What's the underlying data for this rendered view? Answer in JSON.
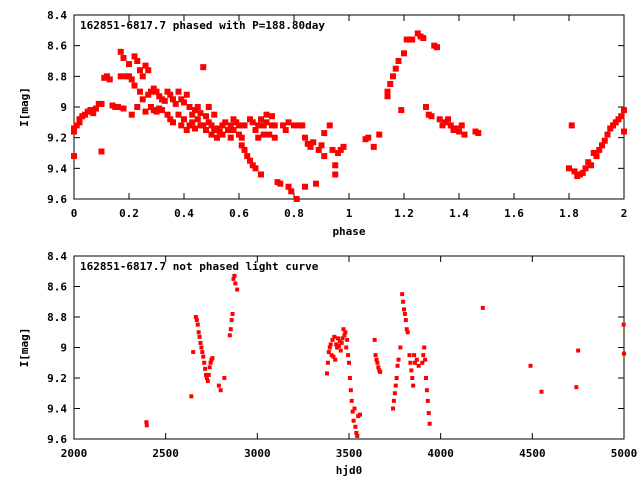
{
  "chart_data": [
    {
      "type": "scatter",
      "title": "162851-6817.7 phased with P=188.80day",
      "xlabel": "phase",
      "ylabel": "I[mag]",
      "xlim": [
        0,
        2
      ],
      "ylim": [
        9.6,
        8.4
      ],
      "y_inverted": true,
      "grid": false,
      "marker_color": "#ff0000",
      "marker": "filled-square",
      "x_ticks": [
        0,
        0.2,
        0.4,
        0.6,
        0.8,
        1,
        1.2,
        1.4,
        1.6,
        1.8,
        2
      ],
      "x_tick_labels": [
        "0",
        "0.2",
        "0.4",
        "0.6",
        "0.8",
        "1",
        "1.2",
        "1.4",
        "1.6",
        "1.8",
        "2"
      ],
      "y_ticks": [
        8.4,
        8.6,
        8.8,
        9,
        9.2,
        9.4,
        9.6
      ],
      "y_tick_labels": [
        "8.4",
        "8.6",
        "8.8",
        "9",
        "9.2",
        "9.4",
        "9.6"
      ],
      "points": [
        [
          0.0,
          9.16
        ],
        [
          0.0,
          9.14
        ],
        [
          0.0,
          9.32
        ],
        [
          0.01,
          9.12
        ],
        [
          0.02,
          9.08
        ],
        [
          0.02,
          9.1
        ],
        [
          0.03,
          9.06
        ],
        [
          0.04,
          9.05
        ],
        [
          0.05,
          9.03
        ],
        [
          0.06,
          9.02
        ],
        [
          0.07,
          9.04
        ],
        [
          0.08,
          9.01
        ],
        [
          0.09,
          8.98
        ],
        [
          0.1,
          8.98
        ],
        [
          0.1,
          9.29
        ],
        [
          0.11,
          8.81
        ],
        [
          0.12,
          8.8
        ],
        [
          0.13,
          8.82
        ],
        [
          0.14,
          8.99
        ],
        [
          0.15,
          9.0
        ],
        [
          0.16,
          9.0
        ],
        [
          0.17,
          8.8
        ],
        [
          0.17,
          8.64
        ],
        [
          0.18,
          8.68
        ],
        [
          0.18,
          9.01
        ],
        [
          0.19,
          8.8
        ],
        [
          0.2,
          8.72
        ],
        [
          0.2,
          8.8
        ],
        [
          0.21,
          8.82
        ],
        [
          0.21,
          9.05
        ],
        [
          0.22,
          8.67
        ],
        [
          0.22,
          8.86
        ],
        [
          0.23,
          8.7
        ],
        [
          0.23,
          9.0
        ],
        [
          0.24,
          8.76
        ],
        [
          0.24,
          8.9
        ],
        [
          0.25,
          8.8
        ],
        [
          0.25,
          8.95
        ],
        [
          0.26,
          8.73
        ],
        [
          0.26,
          9.03
        ],
        [
          0.27,
          8.76
        ],
        [
          0.27,
          8.92
        ],
        [
          0.28,
          8.9
        ],
        [
          0.28,
          9.0
        ],
        [
          0.29,
          8.88
        ],
        [
          0.29,
          9.02
        ],
        [
          0.3,
          8.9
        ],
        [
          0.3,
          9.03
        ],
        [
          0.31,
          8.93
        ],
        [
          0.31,
          9.01
        ],
        [
          0.32,
          8.95
        ],
        [
          0.32,
          9.02
        ],
        [
          0.33,
          8.96
        ],
        [
          0.34,
          8.9
        ],
        [
          0.34,
          9.05
        ],
        [
          0.35,
          8.92
        ],
        [
          0.35,
          9.08
        ],
        [
          0.36,
          8.95
        ],
        [
          0.36,
          9.1
        ],
        [
          0.37,
          8.98
        ],
        [
          0.38,
          8.9
        ],
        [
          0.38,
          9.05
        ],
        [
          0.39,
          8.95
        ],
        [
          0.39,
          9.12
        ],
        [
          0.4,
          8.97
        ],
        [
          0.4,
          9.08
        ],
        [
          0.41,
          8.92
        ],
        [
          0.41,
          9.15
        ],
        [
          0.42,
          9.0
        ],
        [
          0.42,
          9.12
        ],
        [
          0.43,
          9.05
        ],
        [
          0.43,
          9.1
        ],
        [
          0.44,
          9.02
        ],
        [
          0.44,
          9.14
        ],
        [
          0.45,
          9.0
        ],
        [
          0.45,
          9.08
        ],
        [
          0.46,
          9.04
        ],
        [
          0.46,
          9.12
        ],
        [
          0.47,
          8.74
        ],
        [
          0.47,
          9.12
        ],
        [
          0.48,
          9.06
        ],
        [
          0.48,
          9.15
        ],
        [
          0.49,
          9.1
        ],
        [
          0.49,
          9.0
        ],
        [
          0.5,
          9.12
        ],
        [
          0.5,
          9.18
        ],
        [
          0.51,
          9.15
        ],
        [
          0.51,
          9.05
        ],
        [
          0.52,
          9.14
        ],
        [
          0.52,
          9.2
        ],
        [
          0.53,
          9.16
        ],
        [
          0.54,
          9.18
        ],
        [
          0.54,
          9.12
        ],
        [
          0.55,
          9.1
        ],
        [
          0.56,
          9.15
        ],
        [
          0.57,
          9.12
        ],
        [
          0.57,
          9.2
        ],
        [
          0.58,
          9.08
        ],
        [
          0.58,
          9.15
        ],
        [
          0.59,
          9.1
        ],
        [
          0.6,
          9.12
        ],
        [
          0.6,
          9.18
        ],
        [
          0.61,
          9.2
        ],
        [
          0.61,
          9.25
        ],
        [
          0.62,
          9.28
        ],
        [
          0.62,
          9.12
        ],
        [
          0.63,
          9.32
        ],
        [
          0.64,
          9.35
        ],
        [
          0.64,
          9.08
        ],
        [
          0.65,
          9.1
        ],
        [
          0.65,
          9.38
        ],
        [
          0.66,
          9.15
        ],
        [
          0.66,
          9.4
        ],
        [
          0.67,
          9.12
        ],
        [
          0.67,
          9.2
        ],
        [
          0.68,
          9.08
        ],
        [
          0.68,
          9.44
        ],
        [
          0.69,
          9.12
        ],
        [
          0.69,
          9.18
        ],
        [
          0.7,
          9.05
        ],
        [
          0.7,
          9.1
        ],
        [
          0.71,
          9.18
        ],
        [
          0.72,
          9.06
        ],
        [
          0.72,
          9.12
        ],
        [
          0.73,
          9.12
        ],
        [
          0.73,
          9.2
        ],
        [
          0.74,
          9.49
        ],
        [
          0.75,
          9.5
        ],
        [
          0.76,
          9.12
        ],
        [
          0.77,
          9.15
        ],
        [
          0.78,
          9.1
        ],
        [
          0.78,
          9.52
        ],
        [
          0.79,
          9.55
        ],
        [
          0.8,
          9.12
        ],
        [
          0.81,
          9.6
        ],
        [
          0.82,
          9.12
        ],
        [
          0.83,
          9.12
        ],
        [
          0.84,
          9.2
        ],
        [
          0.84,
          9.52
        ],
        [
          0.85,
          9.24
        ],
        [
          0.86,
          9.26
        ],
        [
          0.87,
          9.23
        ],
        [
          0.88,
          9.5
        ],
        [
          0.89,
          9.28
        ],
        [
          0.9,
          9.25
        ],
        [
          0.91,
          9.32
        ],
        [
          0.91,
          9.17
        ],
        [
          0.93,
          9.12
        ],
        [
          0.94,
          9.28
        ],
        [
          0.95,
          9.38
        ],
        [
          0.95,
          9.44
        ],
        [
          0.96,
          9.3
        ],
        [
          0.97,
          9.28
        ],
        [
          0.98,
          9.26
        ],
        [
          1.06,
          9.21
        ],
        [
          1.07,
          9.2
        ],
        [
          1.09,
          9.26
        ],
        [
          1.11,
          9.18
        ],
        [
          1.14,
          8.93
        ],
        [
          1.14,
          8.9
        ],
        [
          1.15,
          8.85
        ],
        [
          1.16,
          8.8
        ],
        [
          1.17,
          8.75
        ],
        [
          1.18,
          8.7
        ],
        [
          1.19,
          9.02
        ],
        [
          1.2,
          8.65
        ],
        [
          1.21,
          8.56
        ],
        [
          1.22,
          8.56
        ],
        [
          1.23,
          8.56
        ],
        [
          1.25,
          8.52
        ],
        [
          1.26,
          8.54
        ],
        [
          1.27,
          8.55
        ],
        [
          1.28,
          9.0
        ],
        [
          1.29,
          9.05
        ],
        [
          1.3,
          9.06
        ],
        [
          1.31,
          8.6
        ],
        [
          1.32,
          8.61
        ],
        [
          1.33,
          9.08
        ],
        [
          1.34,
          9.12
        ],
        [
          1.35,
          9.1
        ],
        [
          1.36,
          9.08
        ],
        [
          1.37,
          9.12
        ],
        [
          1.38,
          9.15
        ],
        [
          1.39,
          9.14
        ],
        [
          1.4,
          9.16
        ],
        [
          1.41,
          9.12
        ],
        [
          1.42,
          9.18
        ],
        [
          1.46,
          9.16
        ],
        [
          1.47,
          9.17
        ],
        [
          1.8,
          9.4
        ],
        [
          1.81,
          9.12
        ],
        [
          1.82,
          9.42
        ],
        [
          1.83,
          9.45
        ],
        [
          1.84,
          9.44
        ],
        [
          1.85,
          9.43
        ],
        [
          1.86,
          9.4
        ],
        [
          1.87,
          9.36
        ],
        [
          1.88,
          9.38
        ],
        [
          1.89,
          9.3
        ],
        [
          1.9,
          9.32
        ],
        [
          1.91,
          9.28
        ],
        [
          1.92,
          9.25
        ],
        [
          1.93,
          9.22
        ],
        [
          1.94,
          9.18
        ],
        [
          1.95,
          9.14
        ],
        [
          1.96,
          9.12
        ],
        [
          1.97,
          9.1
        ],
        [
          1.98,
          9.08
        ],
        [
          1.99,
          9.06
        ],
        [
          2.0,
          9.02
        ],
        [
          2.0,
          9.16
        ]
      ]
    },
    {
      "type": "scatter",
      "title": "162851-6817.7 not phased light curve",
      "xlabel": "hjd0",
      "ylabel": "I[mag]",
      "xlim": [
        2000,
        5000
      ],
      "ylim": [
        9.6,
        8.4
      ],
      "y_inverted": true,
      "grid": false,
      "marker_color": "#ff0000",
      "marker": "filled-square",
      "x_ticks": [
        2000,
        2500,
        3000,
        3500,
        4000,
        4500,
        5000
      ],
      "x_tick_labels": [
        "2000",
        "2500",
        "3000",
        "3500",
        "4000",
        "4500",
        "5000"
      ],
      "y_ticks": [
        8.4,
        8.6,
        8.8,
        9,
        9.2,
        9.4,
        9.6
      ],
      "y_tick_labels": [
        "8.4",
        "8.6",
        "8.8",
        "9",
        "9.2",
        "9.4",
        "9.6"
      ],
      "points": [
        [
          2395,
          9.49
        ],
        [
          2397,
          9.51
        ],
        [
          2640,
          9.32
        ],
        [
          2650,
          9.03
        ],
        [
          2665,
          8.8
        ],
        [
          2670,
          8.82
        ],
        [
          2675,
          8.85
        ],
        [
          2680,
          8.9
        ],
        [
          2685,
          8.93
        ],
        [
          2690,
          8.97
        ],
        [
          2695,
          9.0
        ],
        [
          2700,
          9.03
        ],
        [
          2705,
          9.06
        ],
        [
          2710,
          9.1
        ],
        [
          2715,
          9.14
        ],
        [
          2720,
          9.18
        ],
        [
          2725,
          9.2
        ],
        [
          2730,
          9.22
        ],
        [
          2735,
          9.18
        ],
        [
          2740,
          9.13
        ],
        [
          2745,
          9.1
        ],
        [
          2750,
          9.08
        ],
        [
          2755,
          9.07
        ],
        [
          2790,
          9.25
        ],
        [
          2800,
          9.28
        ],
        [
          2820,
          9.2
        ],
        [
          2850,
          8.92
        ],
        [
          2855,
          8.88
        ],
        [
          2860,
          8.82
        ],
        [
          2865,
          8.78
        ],
        [
          2870,
          8.55
        ],
        [
          2875,
          8.53
        ],
        [
          2880,
          8.58
        ],
        [
          2890,
          8.62
        ],
        [
          3380,
          9.17
        ],
        [
          3385,
          9.1
        ],
        [
          3390,
          9.03
        ],
        [
          3395,
          9.0
        ],
        [
          3400,
          8.98
        ],
        [
          3405,
          9.05
        ],
        [
          3410,
          8.95
        ],
        [
          3415,
          9.06
        ],
        [
          3420,
          8.93
        ],
        [
          3425,
          9.08
        ],
        [
          3430,
          8.98
        ],
        [
          3435,
          9.0
        ],
        [
          3440,
          8.94
        ],
        [
          3445,
          8.99
        ],
        [
          3450,
          8.96
        ],
        [
          3455,
          9.02
        ],
        [
          3460,
          8.97
        ],
        [
          3465,
          8.94
        ],
        [
          3470,
          8.88
        ],
        [
          3475,
          8.92
        ],
        [
          3480,
          8.9
        ],
        [
          3485,
          9.0
        ],
        [
          3490,
          8.95
        ],
        [
          3495,
          9.05
        ],
        [
          3500,
          9.1
        ],
        [
          3505,
          9.2
        ],
        [
          3510,
          9.28
        ],
        [
          3515,
          9.35
        ],
        [
          3520,
          9.42
        ],
        [
          3525,
          9.48
        ],
        [
          3530,
          9.4
        ],
        [
          3535,
          9.52
        ],
        [
          3540,
          9.56
        ],
        [
          3545,
          9.58
        ],
        [
          3550,
          9.45
        ],
        [
          3560,
          9.44
        ],
        [
          3640,
          8.95
        ],
        [
          3645,
          9.05
        ],
        [
          3650,
          9.08
        ],
        [
          3655,
          9.1
        ],
        [
          3660,
          9.13
        ],
        [
          3665,
          9.15
        ],
        [
          3670,
          9.16
        ],
        [
          3740,
          9.4
        ],
        [
          3745,
          9.35
        ],
        [
          3750,
          9.3
        ],
        [
          3755,
          9.25
        ],
        [
          3760,
          9.2
        ],
        [
          3765,
          9.12
        ],
        [
          3770,
          9.08
        ],
        [
          3780,
          9.0
        ],
        [
          3790,
          8.65
        ],
        [
          3795,
          8.7
        ],
        [
          3800,
          8.75
        ],
        [
          3805,
          8.78
        ],
        [
          3810,
          8.82
        ],
        [
          3815,
          8.88
        ],
        [
          3820,
          8.9
        ],
        [
          3830,
          9.05
        ],
        [
          3835,
          9.1
        ],
        [
          3840,
          9.15
        ],
        [
          3845,
          9.2
        ],
        [
          3850,
          9.25
        ],
        [
          3855,
          9.05
        ],
        [
          3860,
          9.1
        ],
        [
          3870,
          9.08
        ],
        [
          3880,
          9.12
        ],
        [
          3900,
          9.1
        ],
        [
          3905,
          9.05
        ],
        [
          3910,
          9.0
        ],
        [
          3915,
          9.08
        ],
        [
          3920,
          9.2
        ],
        [
          3925,
          9.28
        ],
        [
          3930,
          9.35
        ],
        [
          3935,
          9.43
        ],
        [
          3940,
          9.5
        ],
        [
          4230,
          8.74
        ],
        [
          4490,
          9.12
        ],
        [
          4550,
          9.29
        ],
        [
          4740,
          9.26
        ],
        [
          4750,
          9.02
        ],
        [
          4998,
          8.85
        ],
        [
          5000,
          9.04
        ]
      ]
    }
  ]
}
